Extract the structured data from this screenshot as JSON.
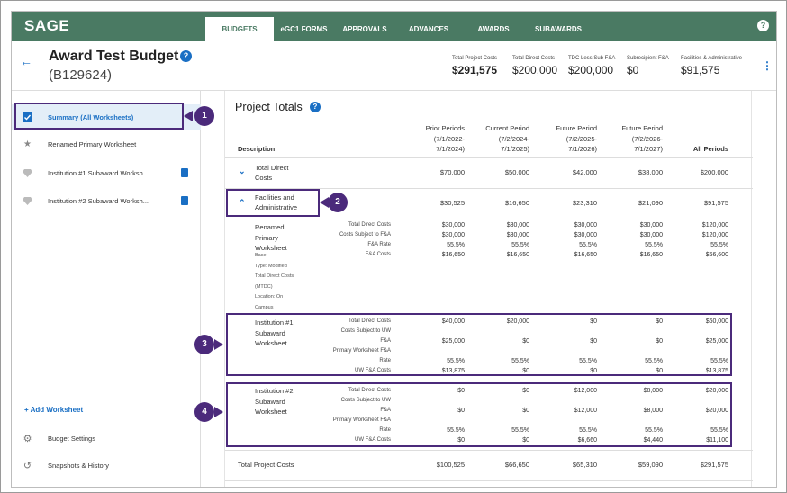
{
  "app": {
    "logo": "SAGE",
    "help": "?"
  },
  "tabs": [
    {
      "label": "BUDGETS",
      "active": true
    },
    {
      "label": "eGC1 FORMS"
    },
    {
      "label": "APPROVALS"
    },
    {
      "label": "ADVANCES"
    },
    {
      "label": "AWARDS"
    },
    {
      "label": "SUBAWARDS"
    }
  ],
  "header": {
    "title": "Award Test Budget",
    "id": "(B129624)",
    "stats": [
      {
        "label": "Total Project Costs",
        "value": "$291,575"
      },
      {
        "label": "Total Direct Costs",
        "value": "$200,000"
      },
      {
        "label": "TDC Less Sub F&A",
        "value": "$200,000"
      },
      {
        "label": "Subrecipient F&A",
        "value": "$0"
      },
      {
        "label": "Facilities & Administrative",
        "value": "$91,575"
      }
    ]
  },
  "sidebar": {
    "items": [
      {
        "label": "Summary (All Worksheets)",
        "icon": "summary-check-icon"
      },
      {
        "label": "Renamed Primary Worksheet",
        "icon": "star-icon"
      },
      {
        "label": "Institution #1 Subaward Worksh...",
        "icon": "diamond-icon"
      },
      {
        "label": "Institution #2 Subaward Worksh...",
        "icon": "diamond-icon"
      }
    ],
    "add_worksheet": "+ Add Worksheet",
    "budget_settings": "Budget Settings",
    "snapshots": "Snapshots & History"
  },
  "main": {
    "title": "Project Totals",
    "columns": {
      "description": "Description",
      "prior": [
        "Prior Periods",
        "(7/1/2022-",
        "7/1/2024)"
      ],
      "current": [
        "Current Period",
        "(7/2/2024-",
        "7/1/2025)"
      ],
      "future1": [
        "Future Period",
        "(7/2/2025-",
        "7/1/2026)"
      ],
      "future2": [
        "Future Period",
        "(7/2/2026-",
        "7/1/2027)"
      ],
      "all": "All Periods"
    },
    "tdc": {
      "label1": "Total Direct",
      "label2": "Costs",
      "values": [
        "$70,000",
        "$50,000",
        "$42,000",
        "$38,000",
        "$200,000"
      ]
    },
    "fa": {
      "label1": "Facilities and",
      "label2": "Administrative",
      "values": [
        "$30,525",
        "$16,650",
        "$23,310",
        "$21,090",
        "$91,575"
      ]
    },
    "primary": {
      "name": [
        "Renamed",
        "Primary",
        "Worksheet"
      ],
      "meta": [
        "Base",
        "Type: Modified",
        "Total Direct Costs",
        "(MTDC)",
        "Location: On",
        "Campus"
      ],
      "rows": [
        {
          "label": "Total Direct Costs",
          "values": [
            "$30,000",
            "$30,000",
            "$30,000",
            "$30,000",
            "$120,000"
          ]
        },
        {
          "label": "Costs Subject to F&A",
          "values": [
            "$30,000",
            "$30,000",
            "$30,000",
            "$30,000",
            "$120,000"
          ]
        },
        {
          "label": "F&A Rate",
          "values": [
            "55.5%",
            "55.5%",
            "55.5%",
            "55.5%",
            "55.5%"
          ]
        },
        {
          "label": "F&A Costs",
          "values": [
            "$16,650",
            "$16,650",
            "$16,650",
            "$16,650",
            "$66,600"
          ]
        }
      ]
    },
    "inst1": {
      "name": [
        "Institution #1",
        "Subaward",
        "Worksheet"
      ],
      "labels": [
        "Total Direct Costs",
        "Costs Subject to UW",
        "F&A",
        "Primary Worksheet F&A",
        "Rate",
        "UW F&A Costs"
      ],
      "tdc": [
        "$40,000",
        "$20,000",
        "$0",
        "$0",
        "$60,000"
      ],
      "subj": [
        "$25,000",
        "$0",
        "$0",
        "$0",
        "$25,000"
      ],
      "rate": [
        "55.5%",
        "55.5%",
        "55.5%",
        "55.5%",
        "55.5%"
      ],
      "costs": [
        "$13,875",
        "$0",
        "$0",
        "$0",
        "$13,875"
      ]
    },
    "inst2": {
      "name": [
        "Institution #2",
        "Subaward",
        "Worksheet"
      ],
      "labels": [
        "Total Direct Costs",
        "Costs Subject to UW",
        "F&A",
        "Primary Worksheet F&A",
        "Rate",
        "UW F&A Costs"
      ],
      "tdc": [
        "$0",
        "$0",
        "$12,000",
        "$8,000",
        "$20,000"
      ],
      "subj": [
        "$0",
        "$0",
        "$12,000",
        "$8,000",
        "$20,000"
      ],
      "rate": [
        "55.5%",
        "55.5%",
        "55.5%",
        "55.5%",
        "55.5%"
      ],
      "costs": [
        "$0",
        "$0",
        "$6,660",
        "$4,440",
        "$11,100"
      ]
    },
    "total": {
      "label": "Total Project Costs",
      "values": [
        "$100,525",
        "$66,650",
        "$65,310",
        "$59,090",
        "$291,575"
      ]
    }
  },
  "callouts": [
    "1",
    "2",
    "3",
    "4"
  ],
  "colors": {
    "brand": "#4a7a63",
    "accent": "#1a6fc4",
    "callout": "#4b2a7b"
  }
}
